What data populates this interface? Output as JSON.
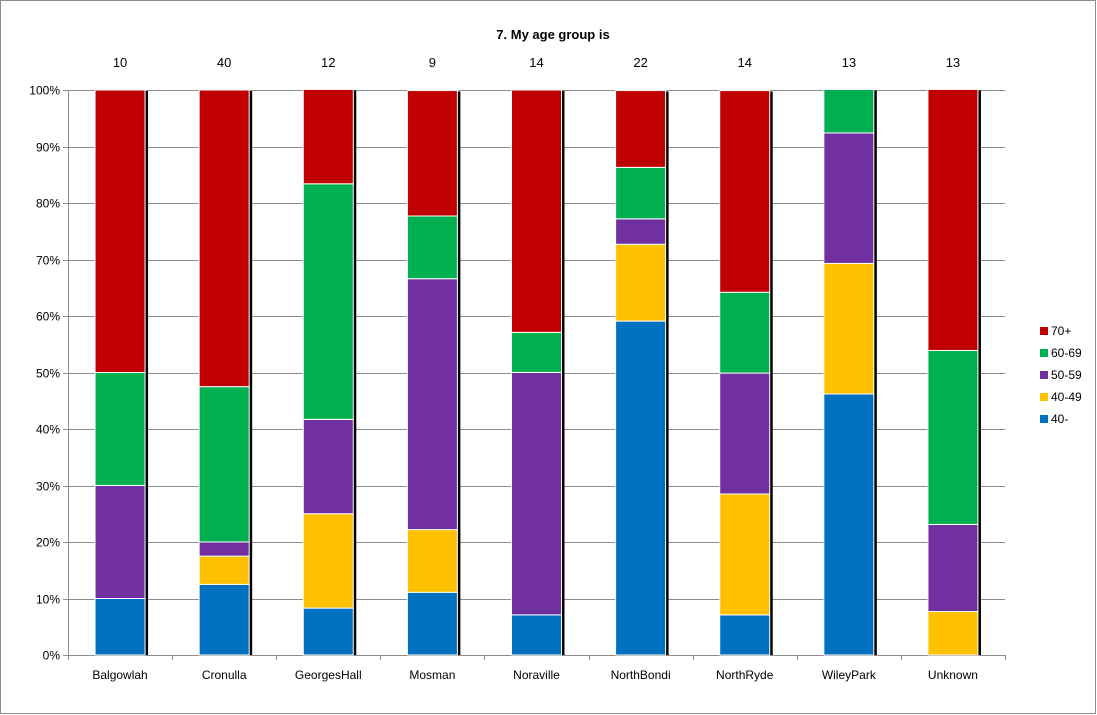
{
  "chart_data": {
    "type": "bar",
    "stacked": true,
    "title": "7. My age group is",
    "categories": [
      "Balgowlah",
      "Cronulla",
      "GeorgesHall",
      "Mosman",
      "Noraville",
      "NorthBondi",
      "NorthRyde",
      "WileyPark",
      "Unknown"
    ],
    "counts": [
      "10",
      "40",
      "12",
      "9",
      "14",
      "22",
      "14",
      "13",
      "13"
    ],
    "yticks": [
      "0%",
      "10%",
      "20%",
      "30%",
      "40%",
      "50%",
      "60%",
      "70%",
      "80%",
      "90%",
      "100%"
    ],
    "ylim": [
      0,
      100
    ],
    "grid": true,
    "legend_position": "right",
    "legend_order": [
      "70+",
      "60-69",
      "50-59",
      "40-49",
      "40-"
    ],
    "series": [
      {
        "name": "40-",
        "color": "#0070C0",
        "values": [
          10,
          12.5,
          8.3,
          11.1,
          7.1,
          59.1,
          7.1,
          46.2,
          0
        ]
      },
      {
        "name": "40-49",
        "color": "#FFC000",
        "values": [
          0,
          5.0,
          16.7,
          11.1,
          0,
          13.6,
          21.4,
          23.1,
          7.7
        ]
      },
      {
        "name": "50-59",
        "color": "#7030A0",
        "values": [
          20,
          2.5,
          16.7,
          44.4,
          42.9,
          4.5,
          21.4,
          23.1,
          15.4
        ]
      },
      {
        "name": "60-69",
        "color": "#00B050",
        "values": [
          20,
          27.5,
          41.7,
          11.1,
          7.1,
          9.1,
          14.3,
          7.7,
          30.8
        ]
      },
      {
        "name": "70+",
        "color": "#C00000",
        "values": [
          50,
          52.5,
          16.7,
          22.2,
          42.9,
          13.6,
          35.7,
          0,
          46.2
        ]
      }
    ]
  }
}
